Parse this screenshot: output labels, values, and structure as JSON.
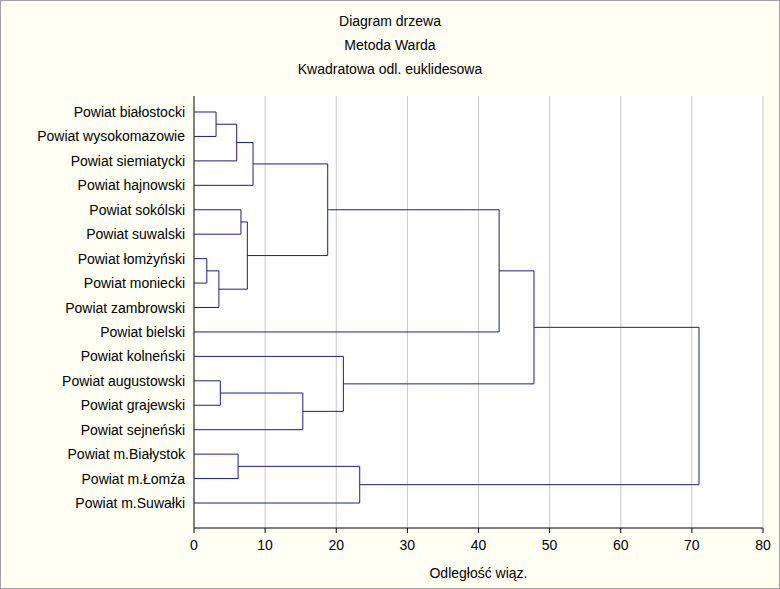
{
  "chart_data": {
    "type": "dendrogram",
    "orientation": "horizontal",
    "title": "Diagram drzewa",
    "subtitle": [
      "Metoda Warda",
      "Kwadratowa odl. euklidesowa"
    ],
    "x_label": "Odległość wiąz.",
    "leaves": [
      "Powiat białostocki",
      "Powiat wysokomazowie",
      "Powiat siemiatycki",
      "Powiat hajnowski",
      "Powiat sokólski",
      "Powiat suwalski",
      "Powiat łomżyński",
      "Powiat moniecki",
      "Powiat zambrowski",
      "Powiat bielski",
      "Powiat kolneński",
      "Powiat augustowski",
      "Powiat grajewski",
      "Powiat sejneński",
      "Powiat m.Białystok",
      "Powiat m.Łomża",
      "Powiat m.Suwałki"
    ],
    "merges": [
      {
        "children": [
          6,
          7
        ],
        "height": 1.8
      },
      {
        "children": [
          0,
          1
        ],
        "height": 3.1
      },
      {
        "children": [
          17,
          8
        ],
        "height": 3.5
      },
      {
        "children": [
          11,
          12
        ],
        "height": 3.7
      },
      {
        "children": [
          18,
          2
        ],
        "height": 6.0
      },
      {
        "children": [
          14,
          15
        ],
        "height": 6.2
      },
      {
        "children": [
          4,
          5
        ],
        "height": 6.6
      },
      {
        "children": [
          23,
          19
        ],
        "height": 7.5
      },
      {
        "children": [
          21,
          3
        ],
        "height": 8.3
      },
      {
        "children": [
          20,
          13
        ],
        "height": 15.3
      },
      {
        "children": [
          25,
          24
        ],
        "height": 18.8
      },
      {
        "children": [
          10,
          26
        ],
        "height": 21.0
      },
      {
        "children": [
          22,
          16
        ],
        "height": 23.3
      },
      {
        "children": [
          27,
          9
        ],
        "height": 42.9
      },
      {
        "children": [
          30,
          28
        ],
        "height": 47.8
      },
      {
        "children": [
          31,
          29
        ],
        "height": 71.0
      }
    ],
    "xlim": [
      0,
      80
    ],
    "xticks": [
      0,
      10,
      20,
      30,
      40,
      50,
      60,
      70,
      80
    ],
    "grid": true,
    "color": "#1c1c8c"
  }
}
